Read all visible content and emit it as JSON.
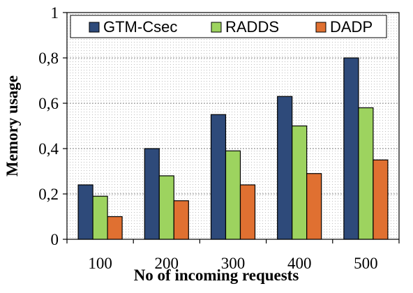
{
  "chart_data": {
    "type": "bar",
    "xlabel": "No of incoming requests",
    "ylabel": "Memory usage",
    "categories": [
      "100",
      "200",
      "300",
      "400",
      "500"
    ],
    "ylim": [
      0,
      1
    ],
    "yticks": [
      0,
      0.2,
      0.4,
      0.6,
      0.8,
      1
    ],
    "ytick_labels": [
      "0",
      "0,2",
      "0,4",
      "0,6",
      "0,8",
      "1"
    ],
    "grid": true,
    "legend_position": "top",
    "series": [
      {
        "name": "GTM-Csec",
        "color": "#2e4a7a",
        "values": [
          0.24,
          0.4,
          0.55,
          0.63,
          0.8
        ]
      },
      {
        "name": "RADDS",
        "color": "#9dd35f",
        "values": [
          0.19,
          0.28,
          0.39,
          0.5,
          0.58
        ]
      },
      {
        "name": "DADP",
        "color": "#e07031",
        "values": [
          0.1,
          0.17,
          0.24,
          0.29,
          0.35
        ]
      }
    ]
  }
}
